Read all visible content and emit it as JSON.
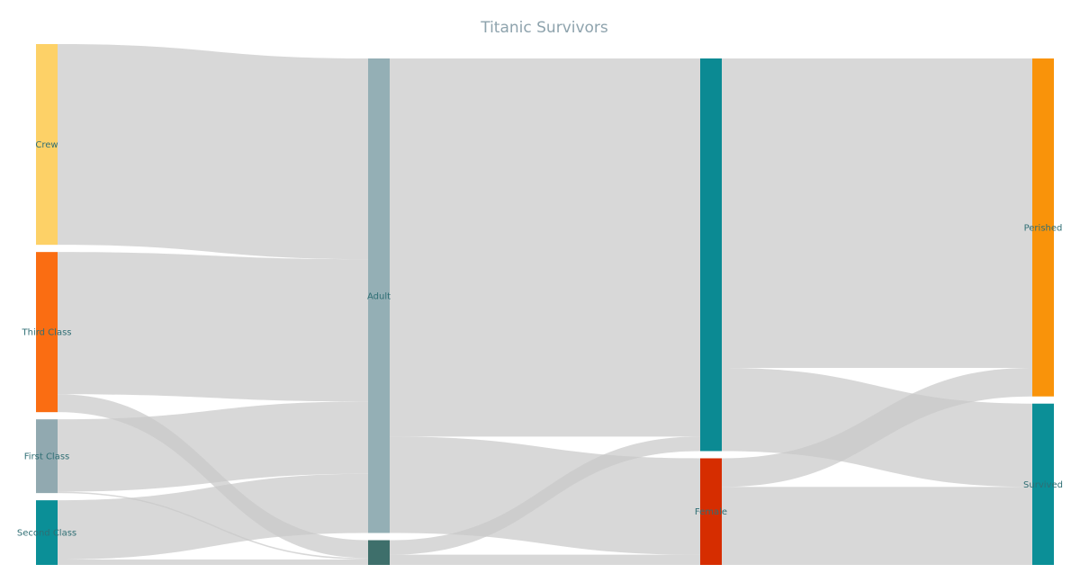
{
  "chart_data": {
    "type": "sankey",
    "title": "Titanic Survivors",
    "nodes": [
      {
        "id": "crew",
        "label": "Crew",
        "column": 0,
        "color": "#fdd167"
      },
      {
        "id": "third",
        "label": "Third Class",
        "column": 0,
        "color": "#fa6d12"
      },
      {
        "id": "first",
        "label": "First Class",
        "column": 0,
        "color": "#91a9b0"
      },
      {
        "id": "second",
        "label": "Second Class",
        "column": 0,
        "color": "#0b8f97"
      },
      {
        "id": "adult",
        "label": "Adult",
        "column": 1,
        "color": "#94afb5"
      },
      {
        "id": "child",
        "label": "",
        "column": 1,
        "color": "#3e6f6b"
      },
      {
        "id": "male",
        "label": "",
        "column": 2,
        "color": "#0b8a93"
      },
      {
        "id": "female",
        "label": "Female",
        "column": 2,
        "color": "#d62d00"
      },
      {
        "id": "perished",
        "label": "Perished",
        "column": 3,
        "color": "#f9930a"
      },
      {
        "id": "survived",
        "label": "Survived",
        "column": 3,
        "color": "#0b8f97"
      }
    ],
    "links": [
      {
        "source": "crew",
        "target": "adult",
        "value": 885
      },
      {
        "source": "third",
        "target": "adult",
        "value": 627
      },
      {
        "source": "third",
        "target": "child",
        "value": 79
      },
      {
        "source": "first",
        "target": "adult",
        "value": 319
      },
      {
        "source": "first",
        "target": "child",
        "value": 6
      },
      {
        "source": "second",
        "target": "adult",
        "value": 261
      },
      {
        "source": "second",
        "target": "child",
        "value": 24
      },
      {
        "source": "adult",
        "target": "male",
        "value": 1667
      },
      {
        "source": "adult",
        "target": "female",
        "value": 425
      },
      {
        "source": "child",
        "target": "male",
        "value": 64
      },
      {
        "source": "child",
        "target": "female",
        "value": 45
      },
      {
        "source": "male",
        "target": "perished",
        "value": 1364
      },
      {
        "source": "male",
        "target": "survived",
        "value": 367
      },
      {
        "source": "female",
        "target": "perished",
        "value": 126
      },
      {
        "source": "female",
        "target": "survived",
        "value": 344
      }
    ]
  }
}
